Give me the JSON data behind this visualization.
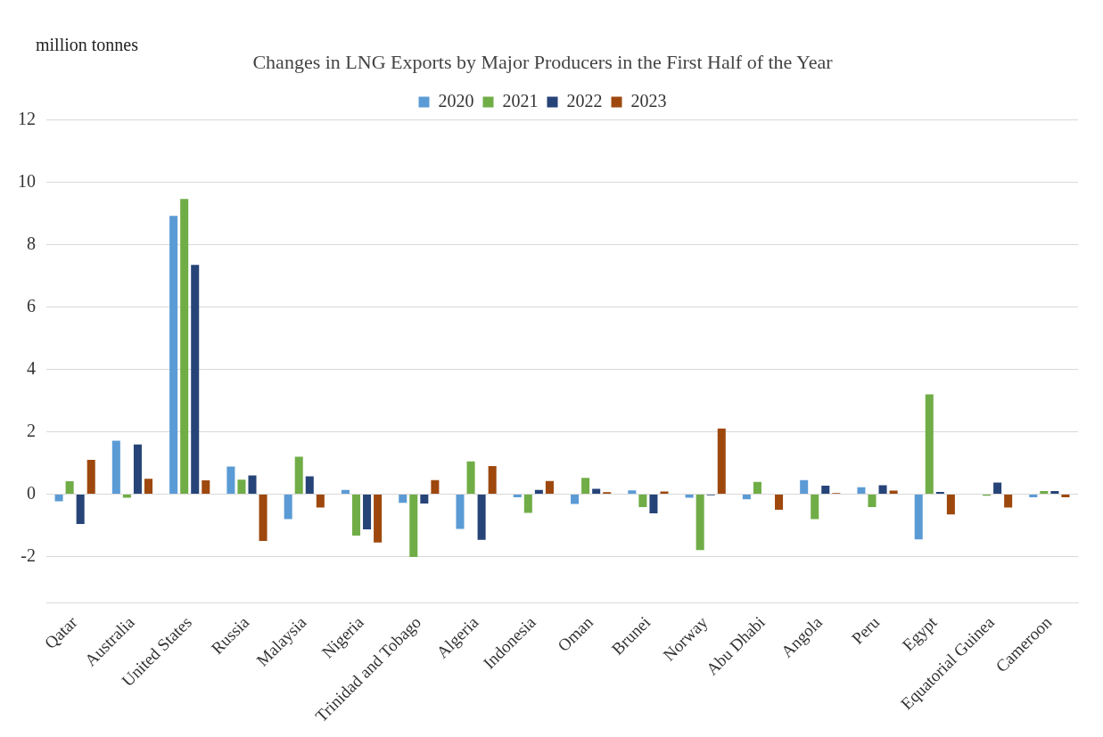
{
  "chart_data": {
    "type": "bar",
    "title": "Changes in LNG Exports by Major Producers in the First Half of the Year",
    "ylabel": "million tonnes",
    "categories": [
      "Qatar",
      "Australia",
      "United States",
      "Russia",
      "Malaysia",
      "Nigeria",
      "Trinidad and Tobago",
      "Algeria",
      "Indonesia",
      "Oman",
      "Brunei",
      "Norway",
      "Abu Dhabi",
      "Angola",
      "Peru",
      "Egypt",
      "Equatorial Guinea",
      "Cameroon"
    ],
    "series": [
      {
        "name": "2020",
        "color": "#5b9bd5",
        "values": [
          -0.23,
          1.71,
          8.92,
          0.88,
          -0.8,
          0.13,
          -0.28,
          -1.12,
          -0.1,
          -0.32,
          0.12,
          -0.12,
          -0.17,
          0.45,
          0.22,
          -1.45,
          null,
          -0.1
        ]
      },
      {
        "name": "2021",
        "color": "#70ad47",
        "values": [
          0.41,
          -0.12,
          9.46,
          0.46,
          1.2,
          -1.33,
          -2.02,
          1.05,
          -0.6,
          0.52,
          -0.42,
          -1.8,
          0.39,
          -0.8,
          -0.42,
          3.2,
          -0.05,
          0.1
        ]
      },
      {
        "name": "2022",
        "color": "#264478",
        "values": [
          -0.96,
          1.59,
          7.35,
          0.6,
          0.57,
          -1.13,
          -0.3,
          -1.47,
          0.13,
          0.17,
          -0.62,
          -0.04,
          null,
          0.27,
          0.28,
          0.07,
          0.37,
          0.1
        ]
      },
      {
        "name": "2023",
        "color": "#9e480e",
        "values": [
          1.1,
          0.49,
          0.44,
          -1.5,
          -0.43,
          -1.55,
          0.45,
          0.9,
          0.42,
          0.06,
          0.08,
          2.1,
          -0.5,
          0.03,
          0.11,
          -0.65,
          -0.43,
          -0.1
        ]
      }
    ],
    "ylim": [
      -3.5,
      12
    ],
    "yticks": [
      -2,
      0,
      2,
      4,
      6,
      8,
      10,
      12
    ],
    "grid": "y",
    "legend": "top"
  }
}
